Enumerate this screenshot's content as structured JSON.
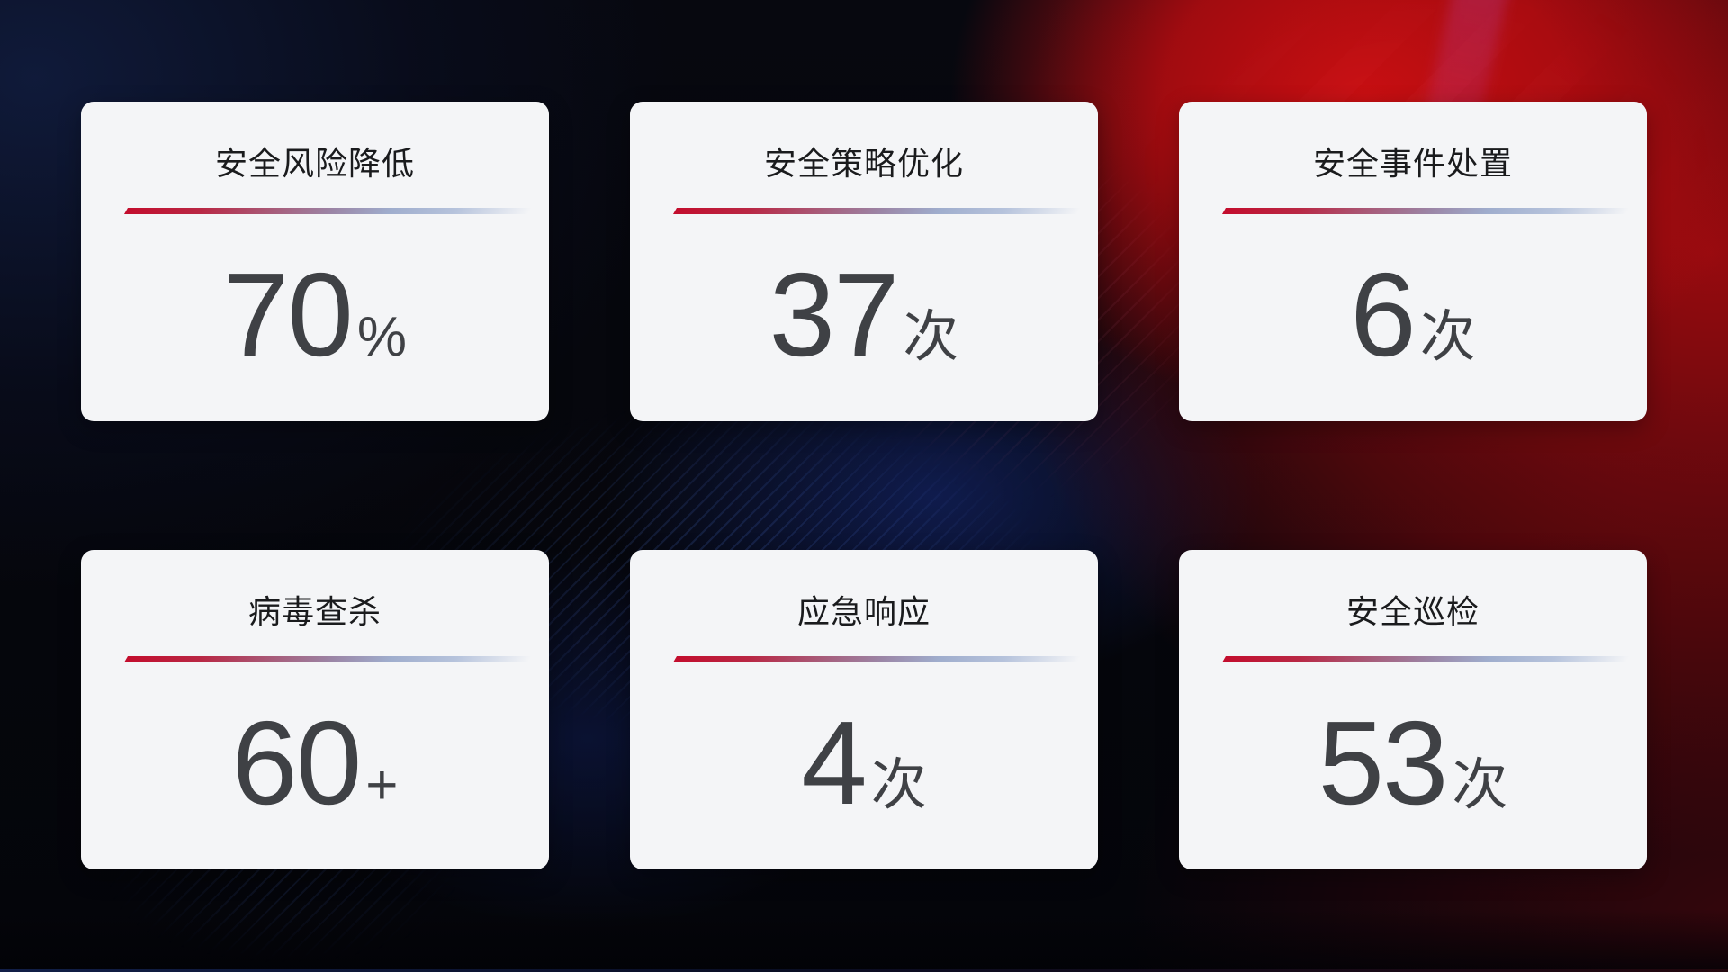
{
  "page": {
    "kind": "security-operations-kpi-dashboard"
  },
  "colors": {
    "card_background": "#f4f5f7",
    "title_text": "#1a1b1d",
    "number_text": "#3f4145",
    "divider_gradient_start": "#c30d2d",
    "divider_gradient_end": "#b6c3dc",
    "background_red": "#c30f14",
    "background_navy": "#101b3c"
  },
  "cards": [
    {
      "title": "安全风险降低",
      "value": "70",
      "unit": "%"
    },
    {
      "title": "安全策略优化",
      "value": "37",
      "unit": "次"
    },
    {
      "title": "安全事件处置",
      "value": "6",
      "unit": "次"
    },
    {
      "title": "病毒查杀",
      "value": "60",
      "unit": "+"
    },
    {
      "title": "应急响应",
      "value": "4",
      "unit": "次"
    },
    {
      "title": "安全巡检",
      "value": "53",
      "unit": "次"
    }
  ]
}
